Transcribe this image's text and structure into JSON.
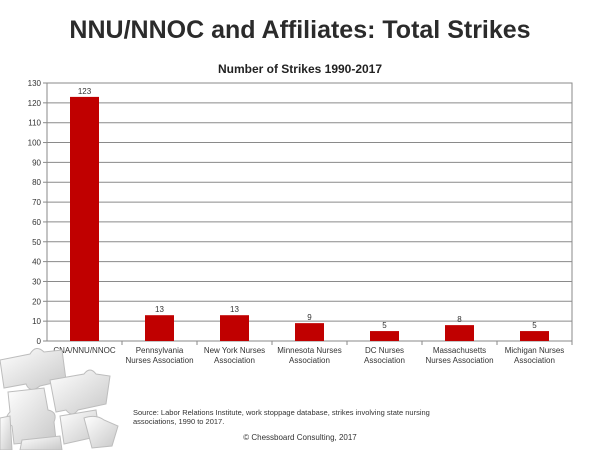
{
  "page": {
    "title": "NNU/NNOC and Affiliates: Total Strikes",
    "source_note": "Source: Labor Relations Institute, work stoppage database, strikes involving state nursing associations, 1990 to 2017.",
    "copyright": "© Chessboard Consulting, 2017"
  },
  "chart_data": {
    "type": "bar",
    "title": "Number of Strikes 1990-2017",
    "xlabel": "",
    "ylabel": "",
    "categories": [
      [
        "CNA/NNU/NNOC"
      ],
      [
        "Pennsylvania",
        "Nurses Association"
      ],
      [
        "New York Nurses",
        "Association"
      ],
      [
        "Minnesota Nurses",
        "Association"
      ],
      [
        "DC Nurses",
        "Association"
      ],
      [
        "Massachusetts",
        "Nurses Association"
      ],
      [
        "Michigan Nurses",
        "Association"
      ]
    ],
    "values": [
      123,
      13,
      13,
      9,
      5,
      8,
      5
    ],
    "ylim": [
      0,
      130
    ],
    "yticks": [
      0,
      10,
      20,
      30,
      40,
      50,
      60,
      70,
      80,
      90,
      100,
      110,
      120,
      130
    ],
    "grid": true,
    "legend": "none",
    "bar_color": "#c00000"
  }
}
